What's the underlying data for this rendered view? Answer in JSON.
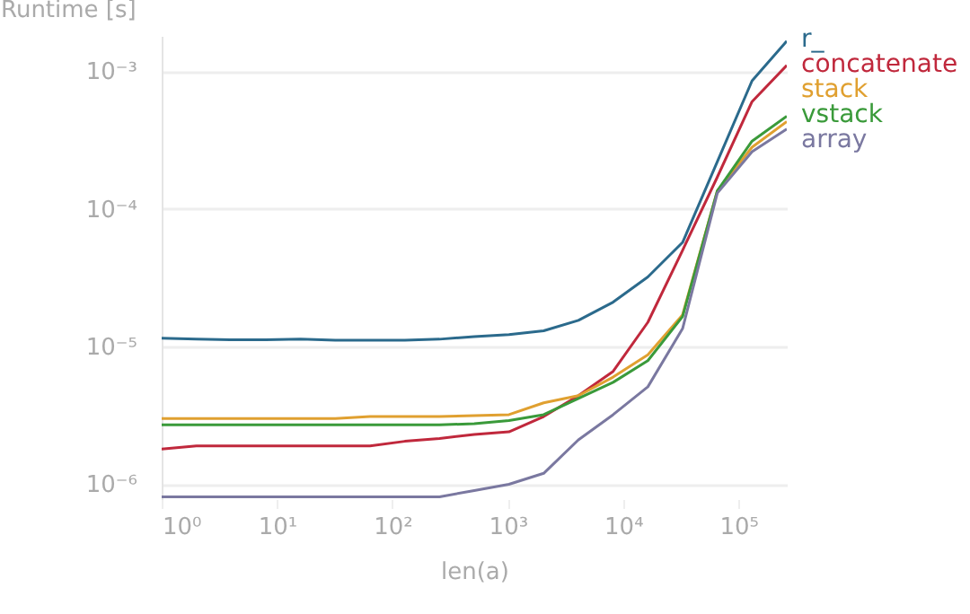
{
  "chart_data": {
    "type": "line",
    "xlabel": "len(a)",
    "ylabel": "Runtime [s]",
    "log": "xy",
    "grid": "y",
    "legend": "right",
    "x": [
      1,
      2,
      4,
      8,
      16,
      32,
      64,
      128,
      256,
      512,
      1024,
      2048,
      4096,
      8192,
      16384,
      32768,
      65536,
      131072,
      262144
    ],
    "series": [
      {
        "name": "r_",
        "color": "#2b6a8c",
        "values": [
          1.15e-05,
          1.13e-05,
          1.12e-05,
          1.12e-05,
          1.13e-05,
          1.11e-05,
          1.11e-05,
          1.11e-05,
          1.13e-05,
          1.18e-05,
          1.22e-05,
          1.3e-05,
          1.55e-05,
          2.1e-05,
          3.2e-05,
          5.7e-05,
          0.00022,
          0.00085,
          0.00165
        ]
      },
      {
        "name": "concatenate",
        "color": "#c0283c",
        "values": [
          1.8e-06,
          1.9e-06,
          1.9e-06,
          1.9e-06,
          1.9e-06,
          1.9e-06,
          1.9e-06,
          2.05e-06,
          2.15e-06,
          2.3e-06,
          2.4e-06,
          3.1e-06,
          4.4e-06,
          6.6e-06,
          1.5e-05,
          5e-05,
          0.00017,
          0.0006,
          0.0011
        ]
      },
      {
        "name": "stack",
        "color": "#e0a030",
        "values": [
          3e-06,
          3e-06,
          3e-06,
          3e-06,
          3e-06,
          3e-06,
          3.1e-06,
          3.1e-06,
          3.1e-06,
          3.15e-06,
          3.2e-06,
          3.9e-06,
          4.4e-06,
          6e-06,
          8.7e-06,
          1.7e-05,
          0.000135,
          0.00028,
          0.00043
        ]
      },
      {
        "name": "vstack",
        "color": "#3a9a3a",
        "values": [
          2.7e-06,
          2.7e-06,
          2.7e-06,
          2.7e-06,
          2.7e-06,
          2.7e-06,
          2.7e-06,
          2.7e-06,
          2.7e-06,
          2.75e-06,
          2.9e-06,
          3.2e-06,
          4.2e-06,
          5.5e-06,
          7.9e-06,
          1.65e-05,
          0.000135,
          0.00031,
          0.00047
        ]
      },
      {
        "name": "array",
        "color": "#7a78a0",
        "values": [
          8.1e-07,
          8.1e-07,
          8.1e-07,
          8.1e-07,
          8.1e-07,
          8.1e-07,
          8.1e-07,
          8.1e-07,
          8.1e-07,
          9e-07,
          1e-06,
          1.2e-06,
          2.1e-06,
          3.2e-06,
          5.1e-06,
          1.35e-05,
          0.00013,
          0.00026,
          0.00038
        ]
      }
    ],
    "xlim": [
      1,
      262144
    ],
    "xticks": [
      {
        "value": 1,
        "label": "10⁰"
      },
      {
        "value": 10,
        "label": "10¹"
      },
      {
        "value": 100,
        "label": "10²"
      },
      {
        "value": 1000,
        "label": "10³"
      },
      {
        "value": 10000,
        "label": "10⁴"
      },
      {
        "value": 100000,
        "label": "10⁵"
      }
    ],
    "ylim": [
      7.8e-07,
      0.0018
    ],
    "yticks": [
      {
        "value": 1e-06,
        "label": "10⁻⁶"
      },
      {
        "value": 1e-05,
        "label": "10⁻⁵"
      },
      {
        "value": 0.0001,
        "label": "10⁻⁴"
      },
      {
        "value": 0.001,
        "label": "10⁻³"
      }
    ]
  }
}
